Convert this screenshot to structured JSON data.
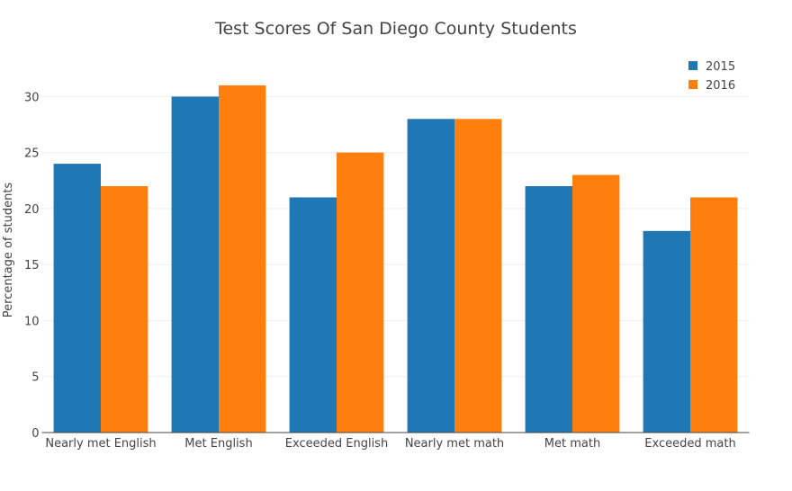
{
  "chart_data": {
    "type": "bar",
    "title": "Test Scores Of San Diego County Students",
    "xlabel": "",
    "ylabel": "Percentage of students",
    "categories": [
      "Nearly met English",
      "Met English",
      "Exceeded English",
      "Nearly met math",
      "Met math",
      "Exceeded math"
    ],
    "series": [
      {
        "name": "2015",
        "color": "#1f77b4",
        "values": [
          24,
          30,
          21,
          28,
          22,
          18
        ]
      },
      {
        "name": "2016",
        "color": "#ff7f0e",
        "values": [
          22,
          31,
          25,
          28,
          23,
          21
        ]
      }
    ],
    "ylim": [
      0,
      32.6
    ],
    "yticks": [
      0,
      5,
      10,
      15,
      20,
      25,
      30
    ],
    "grid": true,
    "legend": "top-right"
  }
}
